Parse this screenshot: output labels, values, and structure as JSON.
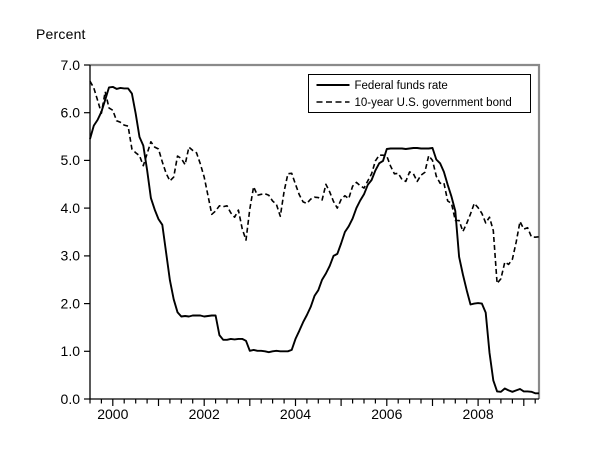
{
  "chart_data": {
    "type": "line",
    "ylabel": "Percent",
    "frequency": "monthly",
    "x_start_year": 2000,
    "x_end_label": "2009",
    "x_tick_years": [
      2000,
      2002,
      2004,
      2006,
      2008
    ],
    "x_minor_tick_every_months": 3,
    "ylim": [
      0,
      7
    ],
    "y_ticks": [
      0,
      1,
      2,
      3,
      4,
      5,
      6,
      7
    ],
    "y_tick_labels": [
      "0.0",
      "1.0",
      "2.0",
      "3.0",
      "4.0",
      "5.0",
      "6.0",
      "7.0"
    ],
    "axis_color": "#000000",
    "frame_color": "#8a8a8a",
    "background": "#ffffff",
    "grid": false,
    "legend": {
      "position": "top-right",
      "border_color": "#000000",
      "background": "#ffffff",
      "entries": [
        "Federal funds rate",
        "10-year U.S. government bond"
      ]
    },
    "series": [
      {
        "name": "Federal funds rate",
        "style": "solid",
        "color": "#000000",
        "values": [
          5.45,
          5.73,
          5.85,
          6.02,
          6.27,
          6.53,
          6.54,
          6.5,
          6.52,
          6.51,
          6.51,
          6.4,
          5.98,
          5.49,
          5.31,
          4.8,
          4.21,
          3.97,
          3.77,
          3.65,
          3.07,
          2.49,
          2.09,
          1.82,
          1.73,
          1.74,
          1.73,
          1.75,
          1.75,
          1.75,
          1.73,
          1.74,
          1.75,
          1.75,
          1.34,
          1.24,
          1.24,
          1.26,
          1.25,
          1.26,
          1.26,
          1.22,
          1.01,
          1.03,
          1.01,
          1.01,
          1.0,
          0.98,
          1.0,
          1.01,
          1.0,
          1.0,
          1.0,
          1.03,
          1.26,
          1.43,
          1.61,
          1.76,
          1.93,
          2.16,
          2.28,
          2.5,
          2.63,
          2.79,
          3.0,
          3.04,
          3.26,
          3.5,
          3.62,
          3.78,
          4.0,
          4.16,
          4.29,
          4.49,
          4.59,
          4.79,
          4.94,
          4.99,
          5.24,
          5.25,
          5.25,
          5.25,
          5.25,
          5.24,
          5.25,
          5.26,
          5.26,
          5.25,
          5.25,
          5.25,
          5.26,
          5.02,
          4.94,
          4.76,
          4.49,
          4.24,
          3.94,
          2.98,
          2.61,
          2.28,
          1.98,
          2.0,
          2.01,
          2.0,
          1.81,
          0.97,
          0.39,
          0.16,
          0.15,
          0.22,
          0.18,
          0.15,
          0.18,
          0.21,
          0.16,
          0.16,
          0.15,
          0.12,
          0.12
        ]
      },
      {
        "name": "10-year U.S. government bond",
        "style": "dashed",
        "color": "#000000",
        "values": [
          6.66,
          6.52,
          6.26,
          5.99,
          6.44,
          6.1,
          6.05,
          5.83,
          5.8,
          5.74,
          5.72,
          5.24,
          5.16,
          5.1,
          4.89,
          5.14,
          5.39,
          5.28,
          5.24,
          4.97,
          4.73,
          4.57,
          4.65,
          5.09,
          5.04,
          4.91,
          5.28,
          5.21,
          5.16,
          4.93,
          4.65,
          4.26,
          3.87,
          3.94,
          4.05,
          4.03,
          4.05,
          3.9,
          3.81,
          3.96,
          3.57,
          3.33,
          3.98,
          4.45,
          4.27,
          4.29,
          4.3,
          4.27,
          4.15,
          4.08,
          3.83,
          4.35,
          4.72,
          4.73,
          4.5,
          4.28,
          4.13,
          4.1,
          4.19,
          4.23,
          4.22,
          4.17,
          4.5,
          4.34,
          4.14,
          4.0,
          4.18,
          4.26,
          4.2,
          4.46,
          4.54,
          4.47,
          4.42,
          4.57,
          4.72,
          4.99,
          5.11,
          5.11,
          5.09,
          4.88,
          4.72,
          4.73,
          4.6,
          4.56,
          4.76,
          4.72,
          4.56,
          4.69,
          4.75,
          5.1,
          5.0,
          4.67,
          4.52,
          4.53,
          4.15,
          4.1,
          3.74,
          3.74,
          3.51,
          3.68,
          3.88,
          4.1,
          4.01,
          3.89,
          3.69,
          3.81,
          3.53,
          2.42,
          2.52,
          2.87,
          2.82,
          2.93,
          3.29,
          3.72,
          3.56,
          3.59,
          3.4,
          3.39,
          3.4
        ]
      }
    ]
  }
}
